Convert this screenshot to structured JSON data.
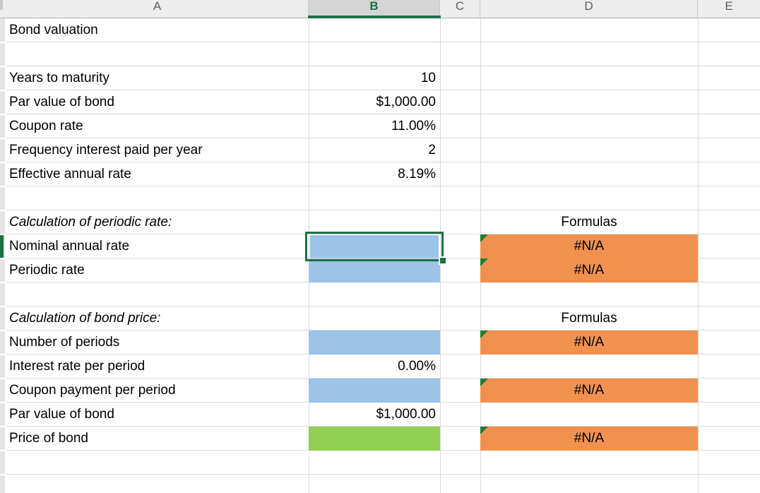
{
  "sheet": {
    "title": "Bond valuation worksheet",
    "columns": [
      {
        "letter": "A",
        "selected": false
      },
      {
        "letter": "B",
        "selected": true
      },
      {
        "letter": "C",
        "selected": false
      },
      {
        "letter": "D",
        "selected": false
      },
      {
        "letter": "E",
        "selected": false
      }
    ],
    "rows": [
      {
        "a": "Bond valuation"
      },
      {},
      {
        "a": "Years to maturity",
        "b": "10"
      },
      {
        "a": "Par value of bond",
        "b": "$1,000.00"
      },
      {
        "a": "Coupon rate",
        "b": "11.00%"
      },
      {
        "a": "Frequency interest paid per year",
        "b": "2"
      },
      {
        "a": "Effective annual rate",
        "b": "8.19%"
      },
      {},
      {
        "a": "Calculation of periodic rate:",
        "a_italic": true,
        "d": "Formulas"
      },
      {
        "a": "Nominal annual rate",
        "b_fill": "blue",
        "b_selected": true,
        "d": "#N/A",
        "d_fill": "orange",
        "d_indicator": true
      },
      {
        "a": "Periodic rate",
        "b_fill": "blue",
        "d": "#N/A",
        "d_fill": "orange",
        "d_indicator": true
      },
      {},
      {
        "a": "Calculation of bond price:",
        "a_italic": true,
        "d": "Formulas"
      },
      {
        "a": "Number of periods",
        "b_fill": "blue",
        "d": "#N/A",
        "d_fill": "orange",
        "d_indicator": true
      },
      {
        "a": "Interest rate per period",
        "b": "0.00%"
      },
      {
        "a": "Coupon payment per period",
        "b_fill": "blue",
        "d": "#N/A",
        "d_fill": "orange",
        "d_indicator": true
      },
      {
        "a": "Par value of bond",
        "b": "$1,000.00"
      },
      {
        "a": "Price of bond",
        "b_fill": "green",
        "d": "#N/A",
        "d_fill": "orange",
        "d_indicator": true
      },
      {},
      {}
    ],
    "colors": {
      "blue_fill": "#9DC3E6",
      "green_fill": "#93CE55",
      "orange_fill": "#F0914F",
      "selection_green": "#1E7145",
      "error_indicator_green": "#217B2D"
    }
  }
}
